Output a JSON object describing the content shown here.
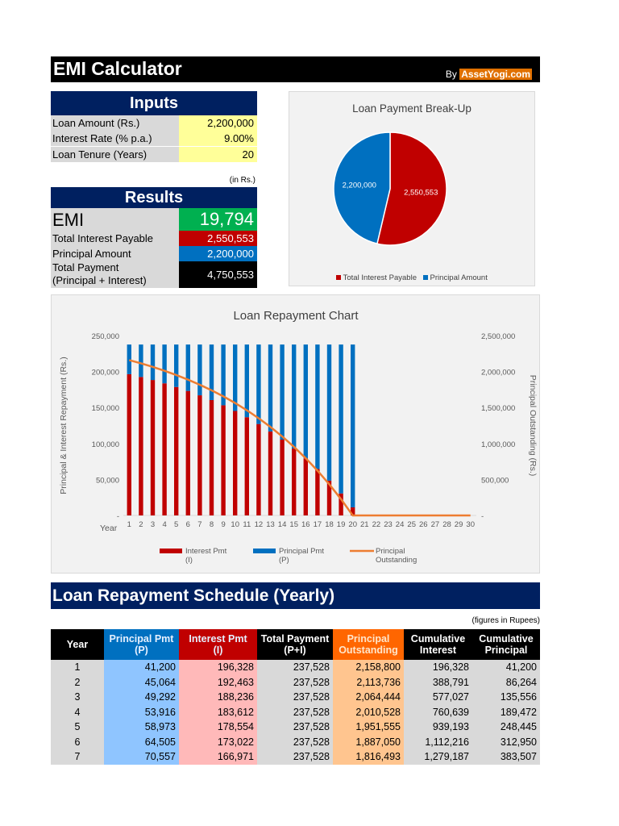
{
  "header": {
    "title": "EMI Calculator",
    "by_label": "By",
    "brand": "AssetYogi.com"
  },
  "inputs": {
    "title": "Inputs",
    "rows": [
      {
        "label": "Loan Amount (Rs.)",
        "value": "2,200,000"
      },
      {
        "label": "Interest Rate (% p.a.)",
        "value": "9.00%"
      },
      {
        "label": "Loan Tenure (Years)",
        "value": "20"
      }
    ]
  },
  "units_note": "(in Rs.)",
  "results": {
    "title": "Results",
    "emi_label": "EMI",
    "emi_value": "19,794",
    "total_interest_label": "Total Interest Payable",
    "total_interest_value": "2,550,553",
    "principal_label": "Principal Amount",
    "principal_value": "2,200,000",
    "total_payment_label_1": "Total Payment",
    "total_payment_label_2": "(Principal + Interest)",
    "total_payment_value": "4,750,553"
  },
  "colors": {
    "interest": "#c00000",
    "principal": "#0070c0",
    "outstanding": "#ed7d31",
    "navy": "#002060",
    "emi_green": "#00b050"
  },
  "chart_data": [
    {
      "type": "pie",
      "title": "Loan Payment Break-Up",
      "labels": [
        "Total Interest Payable",
        "Principal Amount"
      ],
      "values": [
        2550553,
        2200000
      ],
      "data_labels": [
        "2,550,553",
        "2,200,000"
      ],
      "legend": "bottom"
    },
    {
      "type": "bar",
      "title": "Loan Repayment Chart",
      "xlabel": "Year",
      "ylabel": "Principal & Interest Repayment (Rs.)",
      "y2label": "Principal Outstanding (Rs.)",
      "categories": [
        1,
        2,
        3,
        4,
        5,
        6,
        7,
        8,
        9,
        10,
        11,
        12,
        13,
        14,
        15,
        16,
        17,
        18,
        19,
        20,
        21,
        22,
        23,
        24,
        25,
        26,
        27,
        28,
        29,
        30
      ],
      "ylim": [
        0,
        250000
      ],
      "y2lim": [
        0,
        2500000
      ],
      "yticks": [
        "-",
        "50,000",
        "100,000",
        "150,000",
        "200,000",
        "250,000"
      ],
      "y2ticks": [
        "-",
        "500,000",
        "1,000,000",
        "1,500,000",
        "2,000,000",
        "2,500,000"
      ],
      "legend": "bottom",
      "series": [
        {
          "name": "Interest Pmt (I)",
          "kind": "stacked-bar",
          "values": [
            196328,
            192463,
            188236,
            183612,
            178554,
            173022,
            166971,
            160352,
            153112,
            145194,
            136532,
            127058,
            116695,
            105360,
            92962,
            79400,
            64567,
            48342,
            30594,
            11203,
            0,
            0,
            0,
            0,
            0,
            0,
            0,
            0,
            0,
            0
          ]
        },
        {
          "name": "Principal Pmt (P)",
          "kind": "stacked-bar",
          "values": [
            41200,
            45064,
            49292,
            53916,
            58973,
            64505,
            70557,
            77176,
            84416,
            92334,
            100996,
            110470,
            120833,
            132168,
            144566,
            158128,
            172961,
            189186,
            206934,
            226325,
            0,
            0,
            0,
            0,
            0,
            0,
            0,
            0,
            0,
            0
          ]
        },
        {
          "name": "Principal Outstanding",
          "kind": "line",
          "axis": "secondary",
          "values": [
            2158800,
            2113736,
            2064444,
            2010528,
            1951555,
            1887050,
            1816493,
            1739317,
            1654901,
            1562567,
            1461571,
            1351101,
            1230268,
            1098100,
            953534,
            795406,
            622445,
            433259,
            226325,
            0,
            0,
            0,
            0,
            0,
            0,
            0,
            0,
            0,
            0,
            0
          ]
        }
      ]
    }
  ],
  "schedule": {
    "title": "Loan Repayment Schedule (Yearly)",
    "note": "(figures in Rupees)",
    "columns": [
      "Year",
      "Principal Pmt\n(P)",
      "Interest Pmt\n(I)",
      "Total Payment\n(P+I)",
      "Principal\nOutstanding",
      "Cumulative\nInterest",
      "Cumulative\nPrincipal"
    ],
    "rows": [
      [
        "1",
        "41,200",
        "196,328",
        "237,528",
        "2,158,800",
        "196,328",
        "41,200"
      ],
      [
        "2",
        "45,064",
        "192,463",
        "237,528",
        "2,113,736",
        "388,791",
        "86,264"
      ],
      [
        "3",
        "49,292",
        "188,236",
        "237,528",
        "2,064,444",
        "577,027",
        "135,556"
      ],
      [
        "4",
        "53,916",
        "183,612",
        "237,528",
        "2,010,528",
        "760,639",
        "189,472"
      ],
      [
        "5",
        "58,973",
        "178,554",
        "237,528",
        "1,951,555",
        "939,193",
        "248,445"
      ],
      [
        "6",
        "64,505",
        "173,022",
        "237,528",
        "1,887,050",
        "1,112,216",
        "312,950"
      ],
      [
        "7",
        "70,557",
        "166,971",
        "237,528",
        "1,816,493",
        "1,279,187",
        "383,507"
      ]
    ]
  }
}
